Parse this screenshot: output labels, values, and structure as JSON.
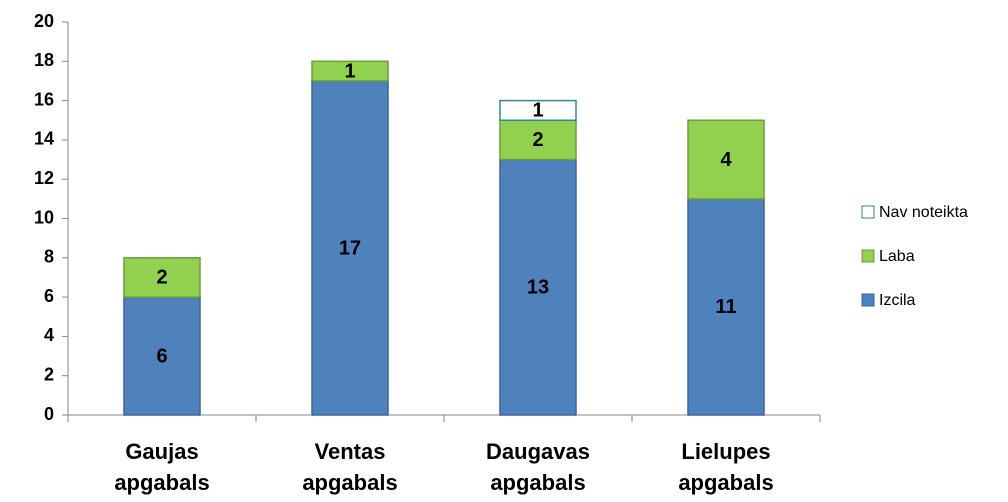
{
  "chart_data": {
    "type": "stacked_bar",
    "categories": [
      "Gaujas apgabals",
      "Ventas apgabals",
      "Daugavas apgabals",
      "Lielupes apgabals"
    ],
    "series": [
      {
        "name": "Izcila",
        "color": "#4f81bd",
        "values": [
          6,
          17,
          13,
          11
        ]
      },
      {
        "name": "Laba",
        "color": "#92d050",
        "values": [
          2,
          1,
          2,
          4
        ]
      },
      {
        "name": "Nav noteikta",
        "color": "#ffffff",
        "values": [
          null,
          null,
          1,
          null
        ]
      }
    ],
    "ylim": [
      0,
      20
    ],
    "yticks": [
      0,
      2,
      4,
      6,
      8,
      10,
      12,
      14,
      16,
      18,
      20
    ],
    "grid": false,
    "legend": "right"
  }
}
